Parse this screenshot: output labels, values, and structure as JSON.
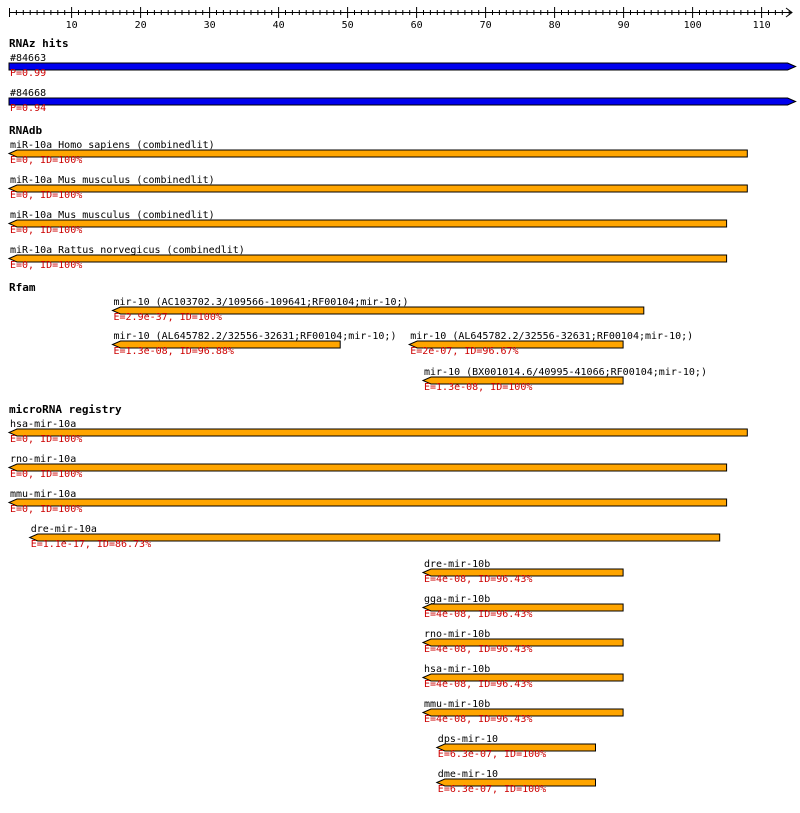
{
  "colors": {
    "rnaz": "#0000ee",
    "orange": "#ffa500",
    "outline": "#000000",
    "score": "#cc0000"
  },
  "ruler": {
    "min": 1,
    "max": 114,
    "labeled_ticks": [
      10,
      20,
      30,
      40,
      50,
      60,
      70,
      80,
      90,
      100,
      110
    ]
  },
  "tracks": [
    {
      "title": "RNAz hits",
      "color": "#0000ee",
      "features": [
        {
          "name": "#84663",
          "score": "P=0.99",
          "start": 1,
          "end": 114,
          "strand": "+"
        },
        {
          "name": "#84668",
          "score": "P=0.94",
          "start": 1,
          "end": 114,
          "strand": "+"
        }
      ]
    },
    {
      "title": "RNAdb",
      "color": "#ffa500",
      "features": [
        {
          "name": "miR-10a Homo sapiens (combinedlit)",
          "score": "E=0, ID=100%",
          "start": 1,
          "end": 107,
          "strand": "-"
        },
        {
          "name": "miR-10a Mus musculus (combinedlit)",
          "score": "E=0, ID=100%",
          "start": 1,
          "end": 107,
          "strand": "-"
        },
        {
          "name": "miR-10a Mus musculus (combinedlit)",
          "score": "E=0, ID=100%",
          "start": 1,
          "end": 104,
          "strand": "-"
        },
        {
          "name": "miR-10a Rattus norvegicus (combinedlit)",
          "score": "E=0, ID=100%",
          "start": 1,
          "end": 104,
          "strand": "-"
        }
      ]
    },
    {
      "title": "Rfam",
      "color": "#ffa500",
      "features": [
        {
          "name": "mir-10 (AC103702.3/109566-109641;RF00104;mir-10;)",
          "score": "E=2.9e-37, ID=100%",
          "start": 16,
          "end": 92,
          "strand": "-",
          "row": 0
        },
        {
          "name": "mir-10 (AL645782.2/32556-32631;RF00104;mir-10;)",
          "score": "E=1.3e-08, ID=96.88%",
          "start": 16,
          "end": 48,
          "strand": "-",
          "row": 1
        },
        {
          "name": "mir-10 (AL645782.2/32556-32631;RF00104;mir-10;)",
          "score": "E=2e-07, ID=96.67%",
          "start": 59,
          "end": 89,
          "strand": "-",
          "row": 1
        },
        {
          "name": "mir-10 (BX001014.6/40995-41066;RF00104;mir-10;)",
          "score": "E=1.3e-08, ID=100%",
          "start": 61,
          "end": 89,
          "strand": "-",
          "row": 2
        }
      ]
    },
    {
      "title": "microRNA registry",
      "color": "#ffa500",
      "features": [
        {
          "name": "hsa-mir-10a",
          "score": "E=0, ID=100%",
          "start": 1,
          "end": 107,
          "strand": "-"
        },
        {
          "name": "rno-mir-10a",
          "score": "E=0, ID=100%",
          "start": 1,
          "end": 104,
          "strand": "-"
        },
        {
          "name": "mmu-mir-10a",
          "score": "E=0, ID=100%",
          "start": 1,
          "end": 104,
          "strand": "-"
        },
        {
          "name": "dre-mir-10a",
          "score": "E=1.1e-17, ID=86.73%",
          "start": 4,
          "end": 103,
          "strand": "-"
        },
        {
          "name": "dre-mir-10b",
          "score": "E=4e-08, ID=96.43%",
          "start": 61,
          "end": 89,
          "strand": "-"
        },
        {
          "name": "gga-mir-10b",
          "score": "E=4e-08, ID=96.43%",
          "start": 61,
          "end": 89,
          "strand": "-"
        },
        {
          "name": "rno-mir-10b",
          "score": "E=4e-08, ID=96.43%",
          "start": 61,
          "end": 89,
          "strand": "-"
        },
        {
          "name": "hsa-mir-10b",
          "score": "E=4e-08, ID=96.43%",
          "start": 61,
          "end": 89,
          "strand": "-"
        },
        {
          "name": "mmu-mir-10b",
          "score": "E=4e-08, ID=96.43%",
          "start": 61,
          "end": 89,
          "strand": "-"
        },
        {
          "name": "dps-mir-10",
          "score": "E=6.3e-07, ID=100%",
          "start": 63,
          "end": 85,
          "strand": "-"
        },
        {
          "name": "dme-mir-10",
          "score": "E=6.3e-07, ID=100%",
          "start": 63,
          "end": 85,
          "strand": "-"
        }
      ]
    }
  ]
}
